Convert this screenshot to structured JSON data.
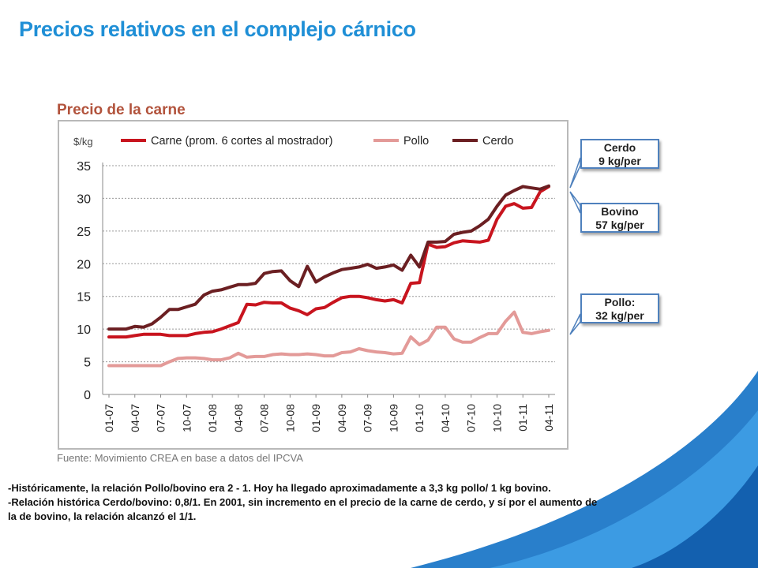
{
  "slide": {
    "title": "Precios relativos en el complejo cárnico",
    "chart_heading": "Precio de la carne",
    "source": "Fuente: Movimiento CREA en base a datos del IPCVA",
    "callouts": [
      {
        "line1": "Cerdo",
        "line2": "9 kg/per"
      },
      {
        "line1": "Bovino",
        "line2": "57 kg/per"
      },
      {
        "line1": "Pollo:",
        "line2": "32 kg/per"
      }
    ],
    "notes": [
      "-Históricamente, la relación Pollo/bovino era 2 - 1. Hoy ha llegado aproximadamente a 3,3 kg pollo/ 1 kg bovino.",
      "-Relación histórica Cerdo/bovino: 0,8/1.  En 2001, sin incremento en el precio de la carne de cerdo, y sí por el aumento de la de bovino, la relación alcanzó el  1/1."
    ],
    "colors": {
      "title": "#1f8fd6",
      "callout_border": "#4f81bd",
      "swoosh": "#1e78c8"
    }
  },
  "chart_data": {
    "type": "line",
    "ylabel": "$/kg",
    "ylim": [
      0,
      35
    ],
    "yticks": [
      0,
      5,
      10,
      15,
      20,
      25,
      30,
      35
    ],
    "grid": true,
    "legend_position": "top",
    "x_tick_labels": [
      "01-07",
      "04-07",
      "07-07",
      "10-07",
      "01-08",
      "04-08",
      "07-08",
      "10-08",
      "01-09",
      "04-09",
      "07-09",
      "10-09",
      "01-10",
      "04-10",
      "07-10",
      "10-10",
      "01-11",
      "04-11"
    ],
    "x": [
      "01-07",
      "02-07",
      "03-07",
      "04-07",
      "05-07",
      "06-07",
      "07-07",
      "08-07",
      "09-07",
      "10-07",
      "11-07",
      "12-07",
      "01-08",
      "02-08",
      "03-08",
      "04-08",
      "05-08",
      "06-08",
      "07-08",
      "08-08",
      "09-08",
      "10-08",
      "11-08",
      "12-08",
      "01-09",
      "02-09",
      "03-09",
      "04-09",
      "05-09",
      "06-09",
      "07-09",
      "08-09",
      "09-09",
      "10-09",
      "11-09",
      "12-09",
      "01-10",
      "02-10",
      "03-10",
      "04-10",
      "05-10",
      "06-10",
      "07-10",
      "08-10",
      "09-10",
      "10-10",
      "11-10",
      "12-10",
      "01-11",
      "02-11",
      "03-11",
      "04-11"
    ],
    "series": [
      {
        "name": "Carne (prom. 6 cortes al mostrador)",
        "color": "#c8141e",
        "values": [
          8.8,
          8.8,
          8.8,
          9.0,
          9.2,
          9.2,
          9.2,
          9.0,
          9.0,
          9.0,
          9.3,
          9.5,
          9.6,
          10.0,
          10.5,
          11.0,
          13.8,
          13.7,
          14.1,
          14.0,
          14.0,
          13.2,
          12.8,
          12.2,
          13.1,
          13.3,
          14.1,
          14.8,
          15.0,
          15.0,
          14.8,
          14.5,
          14.3,
          14.5,
          14.0,
          17.0,
          17.1,
          23.0,
          22.5,
          22.6,
          23.2,
          23.5,
          23.4,
          23.3,
          23.6,
          26.8,
          28.8,
          29.2,
          28.5,
          28.6,
          31.0,
          31.8
        ]
      },
      {
        "name": "Pollo",
        "color": "#e39a98",
        "values": [
          4.4,
          4.4,
          4.4,
          4.4,
          4.4,
          4.4,
          4.4,
          5.0,
          5.5,
          5.6,
          5.6,
          5.5,
          5.3,
          5.3,
          5.6,
          6.3,
          5.7,
          5.8,
          5.8,
          6.1,
          6.2,
          6.1,
          6.1,
          6.2,
          6.1,
          5.9,
          5.9,
          6.4,
          6.5,
          7.0,
          6.7,
          6.5,
          6.4,
          6.2,
          6.3,
          8.8,
          7.6,
          8.3,
          10.3,
          10.3,
          8.5,
          8.0,
          8.0,
          8.7,
          9.3,
          9.3,
          11.2,
          12.6,
          9.5,
          9.3,
          9.6,
          9.8
        ]
      },
      {
        "name": "Cerdo",
        "color": "#6b1f22",
        "values": [
          10.0,
          10.0,
          10.0,
          10.4,
          10.3,
          10.8,
          11.8,
          13.0,
          13.0,
          13.4,
          13.8,
          15.2,
          15.8,
          16.0,
          16.4,
          16.8,
          16.8,
          17.0,
          18.5,
          18.8,
          18.9,
          17.4,
          16.5,
          19.6,
          17.2,
          18.0,
          18.6,
          19.1,
          19.3,
          19.5,
          19.9,
          19.3,
          19.5,
          19.8,
          19.0,
          21.3,
          19.5,
          23.3,
          23.3,
          23.4,
          24.5,
          24.8,
          25.0,
          25.8,
          26.8,
          28.8,
          30.5,
          31.2,
          31.8,
          31.6,
          31.4,
          31.9
        ]
      }
    ]
  }
}
